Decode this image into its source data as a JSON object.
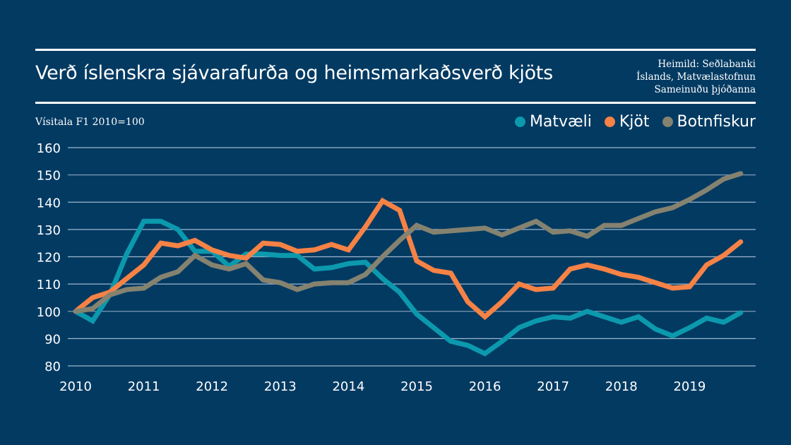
{
  "header": {
    "title": "Verð íslenskra sjávarafurða og heimsmarkaðsverð kjöts",
    "source_lines": [
      "Heimild: Seðlabanki",
      "Íslands, Matvælastofnun",
      "Sameinuðu þjóðanna"
    ],
    "subtitle": "Vísitala F1 2010=100"
  },
  "colors": {
    "background": "#023a62",
    "Matvæli": "#0c99ad",
    "Kjöt": "#f68245",
    "Botnfiskur": "#858270",
    "grid": "#8aa4bd"
  },
  "chart_data": {
    "type": "line",
    "title": "Verð íslenskra sjávarafurða og heimsmarkaðsverð kjöts",
    "ylabel": "Vísitala F1 2010=100",
    "xlabel": "",
    "ylim": [
      80,
      160
    ],
    "yticks": [
      80,
      90,
      100,
      110,
      120,
      130,
      140,
      150,
      160
    ],
    "xticks": [
      "2010",
      "2011",
      "2012",
      "2013",
      "2014",
      "2015",
      "2016",
      "2017",
      "2018",
      "2019"
    ],
    "xlim": [
      2010,
      2019.75
    ],
    "x_step": 0.25,
    "grid": true,
    "legend_position": "top-right",
    "series": [
      {
        "name": "Matvæli",
        "values": [
          100,
          96.5,
          106,
          121,
          133,
          133,
          130,
          122,
          122,
          116.5,
          121,
          121,
          120.5,
          120.5,
          115.5,
          116,
          117.5,
          118,
          112,
          107,
          99,
          94,
          89,
          87.5,
          84.5,
          89,
          94,
          96.5,
          98,
          97.5,
          100,
          98,
          96,
          98,
          93.5,
          91,
          94,
          97.5,
          96,
          99.5
        ]
      },
      {
        "name": "Kjöt",
        "values": [
          100,
          105,
          107,
          112,
          117,
          125,
          124,
          126,
          122.5,
          120.5,
          119.5,
          125,
          124.5,
          122,
          122.5,
          124.5,
          122.5,
          131,
          140.5,
          137,
          118.5,
          115,
          114,
          103.5,
          98,
          103.5,
          110,
          108,
          108.5,
          115.5,
          117,
          115.5,
          113.5,
          112.5,
          110.5,
          108.5,
          109,
          117,
          120.5,
          125.5
        ]
      },
      {
        "name": "Botnfiskur",
        "values": [
          100,
          101,
          106,
          108,
          108.5,
          112.5,
          114.5,
          120.5,
          117,
          115.5,
          117.5,
          111.5,
          110.5,
          108,
          110,
          110.5,
          110.5,
          113.5,
          120,
          126,
          131.5,
          129,
          129.5,
          130,
          130.5,
          128,
          130.5,
          133,
          129,
          129.5,
          127.5,
          131.5,
          131.5,
          134,
          136.5,
          138,
          141,
          144.5,
          148.5,
          150.5
        ]
      }
    ]
  }
}
